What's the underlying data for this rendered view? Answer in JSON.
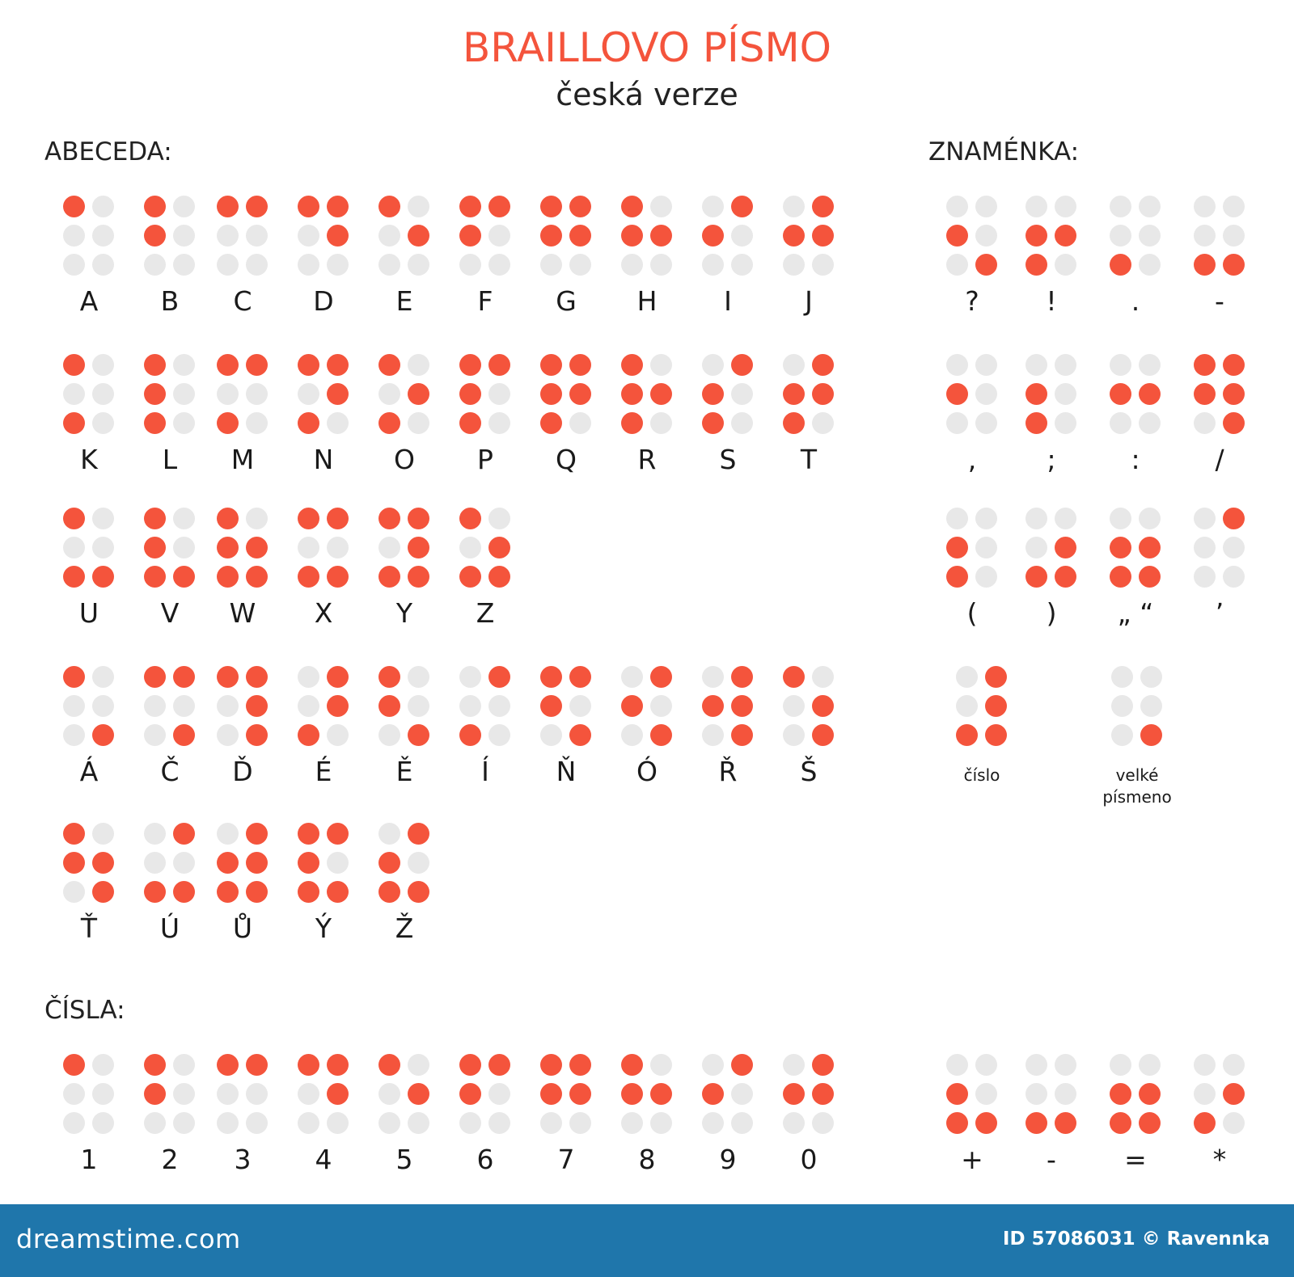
{
  "header": {
    "title": "BRAILLOVO PÍSMO",
    "subtitle": "česká verze"
  },
  "headings": {
    "alphabet": "ABECEDA:",
    "signs": "ZNAMÉNKA:",
    "numbers": "ČÍSLA:"
  },
  "colors": {
    "active_dot": "#f4543c",
    "inactive_dot": "#e8e8e8",
    "footer_bar": "#1f76ab"
  },
  "alphabet_rows": [
    [
      {
        "label": "A",
        "dots": [
          1
        ]
      },
      {
        "label": "B",
        "dots": [
          1,
          2
        ]
      },
      {
        "label": "C",
        "dots": [
          1,
          4
        ]
      },
      {
        "label": "D",
        "dots": [
          1,
          4,
          5
        ]
      },
      {
        "label": "E",
        "dots": [
          1,
          5
        ]
      },
      {
        "label": "F",
        "dots": [
          1,
          2,
          4
        ]
      },
      {
        "label": "G",
        "dots": [
          1,
          2,
          4,
          5
        ]
      },
      {
        "label": "H",
        "dots": [
          1,
          2,
          5
        ]
      },
      {
        "label": "I",
        "dots": [
          2,
          4
        ]
      },
      {
        "label": "J",
        "dots": [
          2,
          4,
          5
        ]
      }
    ],
    [
      {
        "label": "K",
        "dots": [
          1,
          3
        ]
      },
      {
        "label": "L",
        "dots": [
          1,
          2,
          3
        ]
      },
      {
        "label": "M",
        "dots": [
          1,
          3,
          4
        ]
      },
      {
        "label": "N",
        "dots": [
          1,
          3,
          4,
          5
        ]
      },
      {
        "label": "O",
        "dots": [
          1,
          3,
          5
        ]
      },
      {
        "label": "P",
        "dots": [
          1,
          2,
          3,
          4
        ]
      },
      {
        "label": "Q",
        "dots": [
          1,
          2,
          3,
          4,
          5
        ]
      },
      {
        "label": "R",
        "dots": [
          1,
          2,
          3,
          5
        ]
      },
      {
        "label": "S",
        "dots": [
          2,
          3,
          4
        ]
      },
      {
        "label": "T",
        "dots": [
          2,
          3,
          4,
          5
        ]
      }
    ],
    [
      {
        "label": "U",
        "dots": [
          1,
          3,
          6
        ]
      },
      {
        "label": "V",
        "dots": [
          1,
          2,
          3,
          6
        ]
      },
      {
        "label": "W",
        "dots": [
          1,
          2,
          3,
          5,
          6
        ]
      },
      {
        "label": "X",
        "dots": [
          1,
          3,
          4,
          6
        ]
      },
      {
        "label": "Y",
        "dots": [
          1,
          3,
          4,
          5,
          6
        ]
      },
      {
        "label": "Z",
        "dots": [
          1,
          3,
          5,
          6
        ]
      }
    ],
    [
      {
        "label": "Á",
        "dots": [
          1,
          6
        ]
      },
      {
        "label": "Č",
        "dots": [
          1,
          4,
          6
        ]
      },
      {
        "label": "Ď",
        "dots": [
          1,
          4,
          5,
          6
        ]
      },
      {
        "label": "É",
        "dots": [
          3,
          4,
          5
        ]
      },
      {
        "label": "Ě",
        "dots": [
          1,
          2,
          6
        ]
      },
      {
        "label": "Í",
        "dots": [
          3,
          4
        ]
      },
      {
        "label": "Ň",
        "dots": [
          1,
          2,
          4,
          6
        ]
      },
      {
        "label": "Ó",
        "dots": [
          2,
          4,
          6
        ]
      },
      {
        "label": "Ř",
        "dots": [
          2,
          4,
          5,
          6
        ]
      },
      {
        "label": "Š",
        "dots": [
          1,
          5,
          6
        ]
      }
    ],
    [
      {
        "label": "Ť",
        "dots": [
          1,
          2,
          5,
          6
        ]
      },
      {
        "label": "Ú",
        "dots": [
          3,
          4,
          6
        ]
      },
      {
        "label": "Ů",
        "dots": [
          2,
          3,
          4,
          5,
          6
        ]
      },
      {
        "label": "Ý",
        "dots": [
          1,
          2,
          3,
          4,
          6
        ]
      },
      {
        "label": "Ž",
        "dots": [
          2,
          3,
          4,
          6
        ]
      }
    ]
  ],
  "sign_rows": [
    [
      {
        "label": "?",
        "dots": [
          2,
          6
        ]
      },
      {
        "label": "!",
        "dots": [
          2,
          3,
          5
        ]
      },
      {
        "label": ".",
        "dots": [
          3
        ]
      },
      {
        "label": "-",
        "dots": [
          3,
          6
        ]
      }
    ],
    [
      {
        "label": ",",
        "dots": [
          2
        ]
      },
      {
        "label": ";",
        "dots": [
          2,
          3
        ]
      },
      {
        "label": ":",
        "dots": [
          2,
          5
        ]
      },
      {
        "label": "/",
        "dots": [
          1,
          2,
          4,
          5,
          6
        ]
      }
    ],
    [
      {
        "label": "(",
        "dots": [
          2,
          3
        ]
      },
      {
        "label": ")",
        "dots": [
          3,
          5,
          6
        ]
      },
      {
        "label": "„ “",
        "dots": [
          2,
          3,
          5,
          6
        ]
      },
      {
        "label": "’",
        "dots": [
          4
        ]
      }
    ],
    [
      {
        "label": "číslo",
        "dots": [
          3,
          4,
          5,
          6
        ]
      },
      {
        "label": "velké písmeno",
        "dots": [
          6
        ]
      }
    ]
  ],
  "number_row": [
    {
      "label": "1",
      "dots": [
        1
      ]
    },
    {
      "label": "2",
      "dots": [
        1,
        2
      ]
    },
    {
      "label": "3",
      "dots": [
        1,
        4
      ]
    },
    {
      "label": "4",
      "dots": [
        1,
        4,
        5
      ]
    },
    {
      "label": "5",
      "dots": [
        1,
        5
      ]
    },
    {
      "label": "6",
      "dots": [
        1,
        2,
        4
      ]
    },
    {
      "label": "7",
      "dots": [
        1,
        2,
        4,
        5
      ]
    },
    {
      "label": "8",
      "dots": [
        1,
        2,
        5
      ]
    },
    {
      "label": "9",
      "dots": [
        2,
        4
      ]
    },
    {
      "label": "0",
      "dots": [
        2,
        4,
        5
      ]
    }
  ],
  "math_row": [
    {
      "label": "+",
      "dots": [
        2,
        3,
        6
      ]
    },
    {
      "label": "-",
      "dots": [
        3,
        6
      ]
    },
    {
      "label": "=",
      "dots": [
        2,
        3,
        5,
        6
      ]
    },
    {
      "label": "*",
      "dots": [
        3,
        5
      ]
    }
  ],
  "footer": {
    "logo": "dreamstime.com",
    "credit": "ID 57086031 © Ravennka"
  }
}
